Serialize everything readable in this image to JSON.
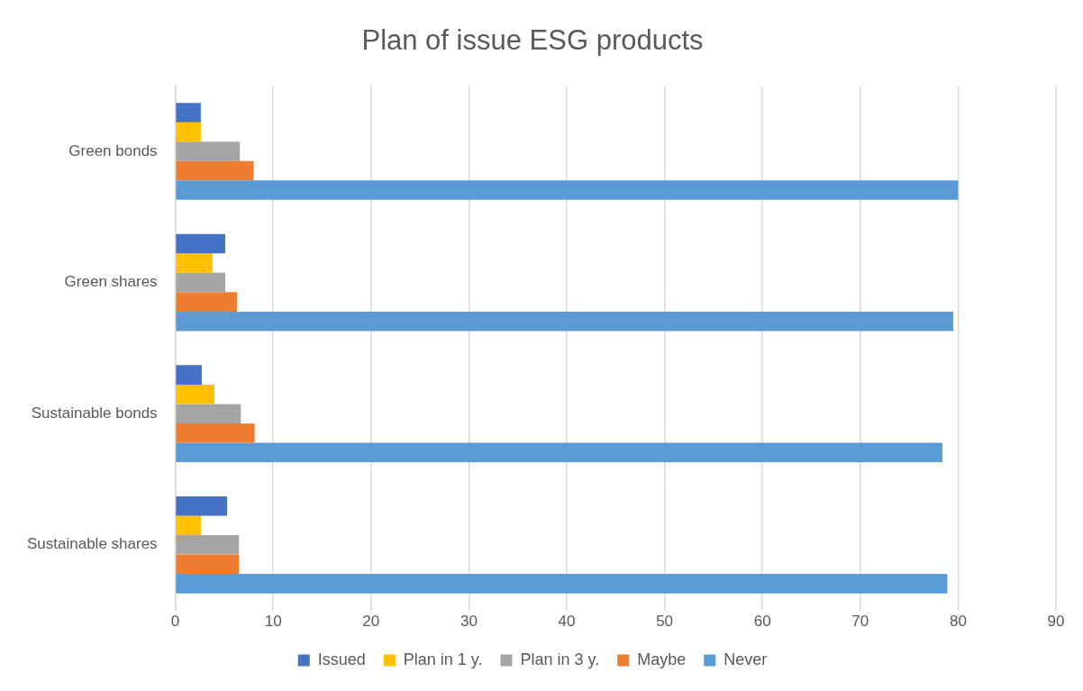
{
  "chart_data": {
    "type": "bar",
    "title": "Plan of issue ESG products",
    "orientation": "horizontal",
    "categories": [
      "Green bonds",
      "Green shares",
      "Sustainable bonds",
      "Sustainable shares"
    ],
    "series": [
      {
        "name": "Issued",
        "color": "#4472c4",
        "values": [
          2.6,
          5.1,
          2.7,
          5.3
        ]
      },
      {
        "name": "Plan in 1 y.",
        "color": "#ffc000",
        "values": [
          2.6,
          3.8,
          4.0,
          2.6
        ]
      },
      {
        "name": "Plan in 3 y.",
        "color": "#a5a5a5",
        "values": [
          6.6,
          5.1,
          6.7,
          6.5
        ]
      },
      {
        "name": "Maybe",
        "color": "#ed7d31",
        "values": [
          8.0,
          6.3,
          8.1,
          6.5
        ]
      },
      {
        "name": "Never",
        "color": "#5b9bd5",
        "values": [
          80,
          79.5,
          78.4,
          78.9
        ]
      }
    ],
    "xlim": [
      0,
      90
    ],
    "xticks": [
      0,
      10,
      20,
      30,
      40,
      50,
      60,
      70,
      80,
      90
    ],
    "grid": "x",
    "legend": "bottom"
  }
}
